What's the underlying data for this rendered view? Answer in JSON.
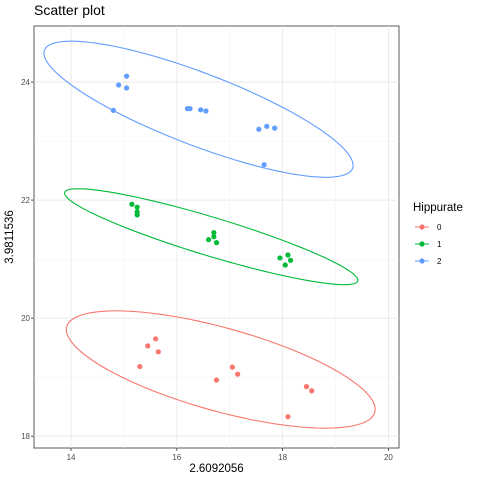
{
  "chart_data": {
    "type": "scatter",
    "title": "Scatter plot",
    "xlabel": "2.6092056",
    "ylabel": "3.9811536",
    "xlim": [
      13.3,
      20.2
    ],
    "ylim": [
      17.8,
      24.95
    ],
    "x_ticks": [
      14,
      16,
      18,
      20
    ],
    "x_tick_labels": [
      "14",
      "16",
      "18",
      "20"
    ],
    "y_ticks": [
      18,
      20,
      22,
      24
    ],
    "y_tick_labels": [
      "18",
      "20",
      "22",
      "24"
    ],
    "grid": true,
    "legend_position": "right",
    "legend_title": "Hippurate",
    "series": [
      {
        "name": "0",
        "color": "#F8766D",
        "points": [
          [
            15.3,
            19.18
          ],
          [
            15.45,
            19.53
          ],
          [
            15.6,
            19.65
          ],
          [
            15.65,
            19.43
          ],
          [
            16.75,
            18.95
          ],
          [
            17.05,
            19.17
          ],
          [
            17.15,
            19.05
          ],
          [
            18.1,
            18.33
          ],
          [
            18.45,
            18.84
          ],
          [
            18.55,
            18.77
          ]
        ],
        "ellipse": {
          "cx": 16.83,
          "cy": 19.13,
          "rx": 3.0,
          "ry": 0.71,
          "angle_deg": -13.8
        }
      },
      {
        "name": "1",
        "color": "#00BA38",
        "points": [
          [
            15.15,
            21.93
          ],
          [
            15.25,
            21.88
          ],
          [
            15.25,
            21.8
          ],
          [
            15.25,
            21.75
          ],
          [
            16.6,
            21.33
          ],
          [
            16.7,
            21.38
          ],
          [
            16.7,
            21.45
          ],
          [
            16.75,
            21.28
          ],
          [
            17.95,
            21.02
          ],
          [
            18.05,
            20.9
          ],
          [
            18.1,
            21.07
          ],
          [
            18.15,
            20.98
          ]
        ],
        "ellipse": {
          "cx": 16.65,
          "cy": 21.38,
          "rx": 2.87,
          "ry": 0.33,
          "angle_deg": -15.1
        }
      },
      {
        "name": "2",
        "color": "#619CFF",
        "points": [
          [
            14.8,
            23.52
          ],
          [
            14.9,
            23.95
          ],
          [
            15.05,
            23.9
          ],
          [
            15.05,
            24.1
          ],
          [
            16.2,
            23.55
          ],
          [
            16.25,
            23.55
          ],
          [
            16.45,
            23.53
          ],
          [
            16.55,
            23.51
          ],
          [
            17.55,
            23.2
          ],
          [
            17.65,
            22.6
          ],
          [
            17.7,
            23.25
          ],
          [
            17.85,
            23.22
          ]
        ],
        "ellipse": {
          "cx": 16.41,
          "cy": 23.54,
          "rx": 3.08,
          "ry": 0.62,
          "angle_deg": -18.8
        }
      }
    ]
  }
}
